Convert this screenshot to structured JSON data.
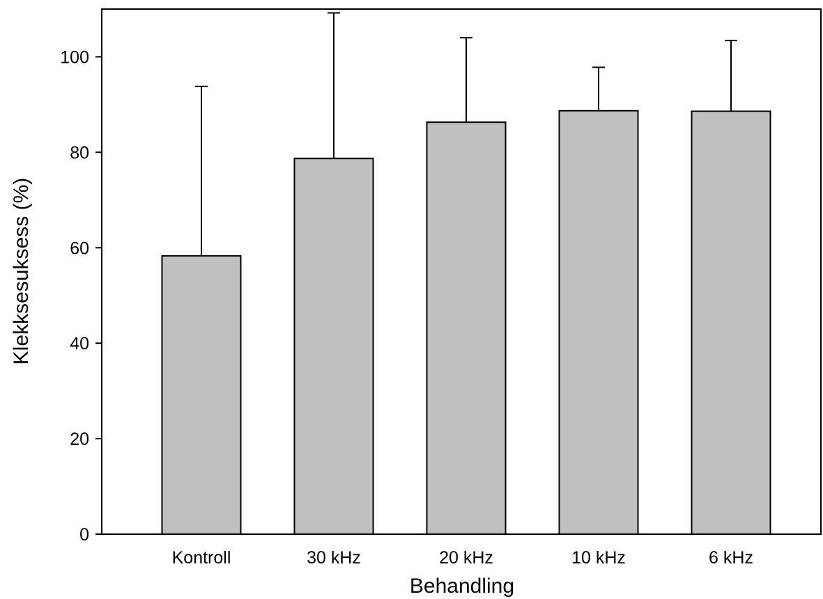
{
  "chart_data": {
    "type": "bar",
    "title": "",
    "xlabel": "Behandling",
    "ylabel": "Klekksesuksess (%)",
    "categories": [
      "Kontroll",
      "30 kHz",
      "20 kHz",
      "10 kHz",
      "6 kHz"
    ],
    "values": [
      58.3,
      78.7,
      86.3,
      88.7,
      88.6
    ],
    "error_upper": [
      93.8,
      109.2,
      104.0,
      97.8,
      103.4
    ],
    "ylim": [
      0,
      110
    ],
    "yticks": [
      0,
      20,
      40,
      60,
      80,
      100
    ],
    "grid": false,
    "bar_color": "#c0c0c0",
    "edge_color": "#000000"
  }
}
